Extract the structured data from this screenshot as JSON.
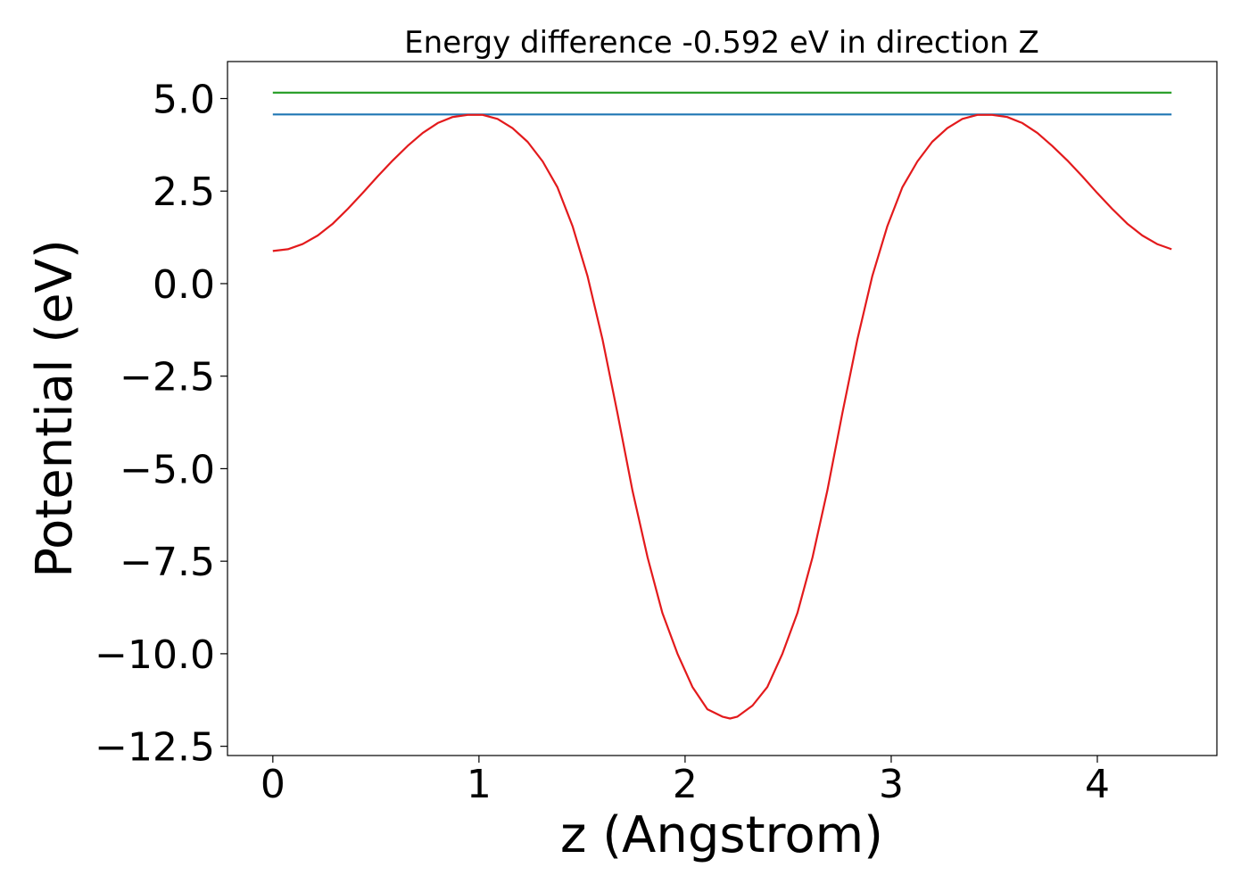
{
  "chart_data": {
    "type": "line",
    "title": "Energy difference -0.592 eV in direction Z",
    "xlabel": "z (Angstrom)",
    "ylabel": "Potential (eV)",
    "xlim": [
      -0.22,
      4.58
    ],
    "ylim": [
      -12.75,
      6.0
    ],
    "grid": false,
    "legend": "none",
    "x_ticks": [
      {
        "value": 0,
        "label": "0"
      },
      {
        "value": 1,
        "label": "1"
      },
      {
        "value": 2,
        "label": "2"
      },
      {
        "value": 3,
        "label": "3"
      },
      {
        "value": 4,
        "label": "4"
      }
    ],
    "y_ticks": [
      {
        "value": 5.0,
        "label": "5.0"
      },
      {
        "value": 2.5,
        "label": "2.5"
      },
      {
        "value": 0.0,
        "label": "0.0"
      },
      {
        "value": -2.5,
        "label": "−2.5"
      },
      {
        "value": -5.0,
        "label": "−5.0"
      },
      {
        "value": -7.5,
        "label": "−7.5"
      },
      {
        "value": -10.0,
        "label": "−10.0"
      },
      {
        "value": -12.5,
        "label": "−12.5"
      }
    ],
    "series": [
      {
        "color": "#2ca02c",
        "x": [
          0,
          4.36
        ],
        "y": [
          5.16,
          5.16
        ]
      },
      {
        "color": "#1f77b4",
        "x": [
          0,
          4.36
        ],
        "y": [
          4.57,
          4.57
        ]
      },
      {
        "color": "#e31a1c",
        "x": [
          0.0,
          0.073,
          0.145,
          0.218,
          0.291,
          0.364,
          0.436,
          0.509,
          0.582,
          0.654,
          0.727,
          0.8,
          0.872,
          0.945,
          1.018,
          1.09,
          1.163,
          1.236,
          1.309,
          1.381,
          1.454,
          1.527,
          1.599,
          1.672,
          1.745,
          1.818,
          1.89,
          1.963,
          2.036,
          2.108,
          2.181,
          2.218,
          2.254,
          2.327,
          2.399,
          2.472,
          2.545,
          2.618,
          2.69,
          2.763,
          2.836,
          2.908,
          2.981,
          3.054,
          3.127,
          3.199,
          3.272,
          3.345,
          3.418,
          3.49,
          3.563,
          3.636,
          3.709,
          3.781,
          3.854,
          3.927,
          3.999,
          4.072,
          4.145,
          4.218,
          4.29,
          4.36
        ],
        "y": [
          0.88,
          0.93,
          1.07,
          1.3,
          1.62,
          2.02,
          2.45,
          2.9,
          3.33,
          3.72,
          4.07,
          4.34,
          4.5,
          4.56,
          4.56,
          4.45,
          4.2,
          3.83,
          3.3,
          2.6,
          1.55,
          0.2,
          -1.5,
          -3.5,
          -5.6,
          -7.4,
          -8.9,
          -10.0,
          -10.9,
          -11.5,
          -11.7,
          -11.75,
          -11.7,
          -11.4,
          -10.9,
          -10.0,
          -8.9,
          -7.4,
          -5.6,
          -3.5,
          -1.5,
          0.2,
          1.55,
          2.6,
          3.3,
          3.83,
          4.2,
          4.45,
          4.56,
          4.56,
          4.5,
          4.34,
          4.07,
          3.72,
          3.33,
          2.9,
          2.45,
          2.02,
          1.62,
          1.3,
          1.07,
          0.93
        ]
      }
    ]
  }
}
